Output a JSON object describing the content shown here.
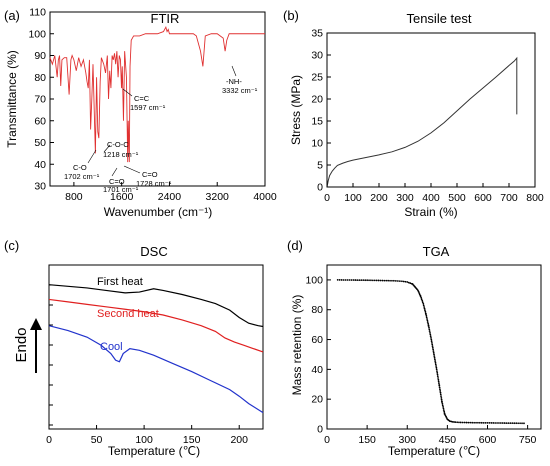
{
  "chart_data": [
    {
      "panel": "(a)",
      "type": "line",
      "title": "FTIR",
      "xlabel": "Wavenumber (cm⁻¹)",
      "ylabel": "Transmittance (%)",
      "xlim": [
        400,
        4000
      ],
      "ylim": [
        30,
        110
      ],
      "xticks": [
        "800",
        "1600",
        "2400",
        "3200",
        "4000"
      ],
      "yticks": [
        "30",
        "40",
        "50",
        "60",
        "70",
        "80",
        "90",
        "100",
        "110"
      ],
      "color": "#e03030",
      "x": [
        400,
        440,
        480,
        520,
        540,
        560,
        580,
        600,
        640,
        680,
        720,
        750,
        770,
        800,
        840,
        880,
        920,
        960,
        1000,
        1020,
        1040,
        1060,
        1080,
        1100,
        1120,
        1160,
        1180,
        1200,
        1218,
        1240,
        1260,
        1300,
        1330,
        1360,
        1380,
        1400,
        1420,
        1440,
        1460,
        1480,
        1500,
        1520,
        1540,
        1560,
        1580,
        1597,
        1610,
        1630,
        1650,
        1680,
        1701,
        1710,
        1728,
        1740,
        1760,
        1800,
        1900,
        2000,
        2100,
        2200,
        2300,
        2340,
        2360,
        2380,
        2400,
        2500,
        2600,
        2700,
        2800,
        2850,
        2920,
        2960,
        3000,
        3100,
        3200,
        3300,
        3332,
        3360,
        3400,
        3500,
        3600,
        3700,
        3800,
        3900,
        4000
      ],
      "y": [
        89,
        86,
        90,
        80,
        88,
        90,
        76,
        88,
        89,
        89,
        72,
        88,
        90,
        88,
        83,
        89,
        85,
        88,
        82,
        78,
        75,
        88,
        56,
        70,
        86,
        45,
        80,
        55,
        52,
        78,
        89,
        86,
        82,
        90,
        70,
        83,
        75,
        90,
        88,
        91,
        86,
        92,
        80,
        90,
        88,
        75,
        85,
        60,
        92,
        80,
        41,
        60,
        41,
        85,
        97,
        99,
        99,
        100,
        100,
        100,
        101,
        103,
        101,
        102,
        100,
        100,
        100,
        100,
        100,
        99,
        92,
        85,
        99,
        100,
        100,
        98,
        92,
        97,
        100,
        100,
        100,
        100,
        100,
        100,
        100
      ],
      "annotations": [
        {
          "label": "C-O",
          "sub": "1702 cm⁻¹"
        },
        {
          "label": "C-O-C",
          "sub": "1218 cm⁻¹"
        },
        {
          "label": "C=O",
          "sub": "1701 cm⁻¹"
        },
        {
          "label": "C=O",
          "sub": "1728 cm⁻¹"
        },
        {
          "label": "C=C",
          "sub": "1597 cm⁻¹"
        },
        {
          "label": "-NH-",
          "sub": "3332 cm⁻¹"
        }
      ]
    },
    {
      "panel": "(b)",
      "type": "line",
      "title": "Tensile test",
      "xlabel": "Strain (%)",
      "ylabel": "Stress (MPa)",
      "xlim": [
        0,
        800
      ],
      "ylim": [
        0,
        35
      ],
      "xticks": [
        "0",
        "100",
        "200",
        "300",
        "400",
        "500",
        "600",
        "700",
        "800"
      ],
      "yticks": [
        "0",
        "5",
        "10",
        "15",
        "20",
        "25",
        "30",
        "35"
      ],
      "color": "#333333",
      "x": [
        0,
        5,
        10,
        20,
        30,
        40,
        60,
        80,
        100,
        150,
        200,
        250,
        300,
        350,
        400,
        450,
        500,
        550,
        600,
        650,
        700,
        720,
        730,
        730
      ],
      "y": [
        0,
        1.5,
        2.6,
        3.6,
        4.3,
        4.9,
        5.4,
        5.8,
        6.1,
        6.7,
        7.3,
        8.0,
        9.0,
        10.4,
        12.3,
        14.6,
        17.3,
        20.0,
        22.5,
        25.0,
        27.6,
        28.6,
        29.3,
        16.5
      ]
    },
    {
      "panel": "(c)",
      "type": "line",
      "title": "DSC",
      "xlabel": "Temperature (℃)",
      "ylabel": "Endo",
      "xlim": [
        0,
        225
      ],
      "xticks": [
        "0",
        "50",
        "100",
        "150",
        "200"
      ],
      "series": [
        {
          "name": "First heat",
          "color": "#000000",
          "x": [
            0,
            20,
            40,
            60,
            80,
            95,
            110,
            120,
            140,
            160,
            175,
            190,
            200,
            210,
            220,
            225
          ],
          "y": [
            9.6,
            9.4,
            9.2,
            8.9,
            8.6,
            8.7,
            9.1,
            8.9,
            8.4,
            7.8,
            7.3,
            6.5,
            5.6,
            4.9,
            4.6,
            4.5
          ]
        },
        {
          "name": "Second heat",
          "color": "#e02020",
          "x": [
            0,
            20,
            40,
            60,
            80,
            100,
            120,
            140,
            160,
            175,
            185,
            195,
            205,
            215,
            225
          ],
          "y": [
            7.8,
            7.5,
            7.2,
            6.9,
            6.6,
            6.3,
            5.9,
            5.3,
            4.6,
            3.9,
            3.1,
            2.6,
            2.2,
            1.8,
            1.4
          ]
        },
        {
          "name": "Cool",
          "color": "#2233cc",
          "x": [
            0,
            20,
            40,
            55,
            65,
            70,
            74,
            78,
            85,
            95,
            110,
            130,
            150,
            170,
            190,
            200,
            210,
            225
          ],
          "y": [
            4.6,
            4.0,
            3.2,
            2.2,
            1.2,
            0.4,
            0.2,
            1.2,
            1.8,
            1.6,
            1.0,
            0.0,
            -1.0,
            -2.1,
            -3.2,
            -4.0,
            -4.9,
            -6.0
          ]
        }
      ]
    },
    {
      "panel": "(d)",
      "type": "scatter",
      "title": "TGA",
      "xlabel": "Temperature (℃)",
      "ylabel": "Mass retention (%)",
      "xlim": [
        0,
        800
      ],
      "ylim": [
        0,
        110
      ],
      "xticks": [
        "0",
        "150",
        "300",
        "450",
        "600",
        "750"
      ],
      "yticks": [
        "0",
        "20",
        "40",
        "60",
        "80",
        "100"
      ],
      "color": "#000000",
      "x": [
        40,
        100,
        150,
        200,
        250,
        280,
        300,
        320,
        340,
        350,
        360,
        370,
        380,
        390,
        400,
        410,
        420,
        430,
        440,
        450,
        460,
        470,
        480,
        500,
        550,
        600,
        650,
        700,
        740
      ],
      "y": [
        100,
        99.9,
        99.8,
        99.6,
        99.4,
        99.1,
        98.6,
        97.2,
        93,
        89,
        84,
        77,
        69,
        60,
        50,
        40,
        29,
        18,
        10,
        6.5,
        5.2,
        4.8,
        4.6,
        4.4,
        4.2,
        4.1,
        4.0,
        3.9,
        3.8
      ]
    }
  ]
}
